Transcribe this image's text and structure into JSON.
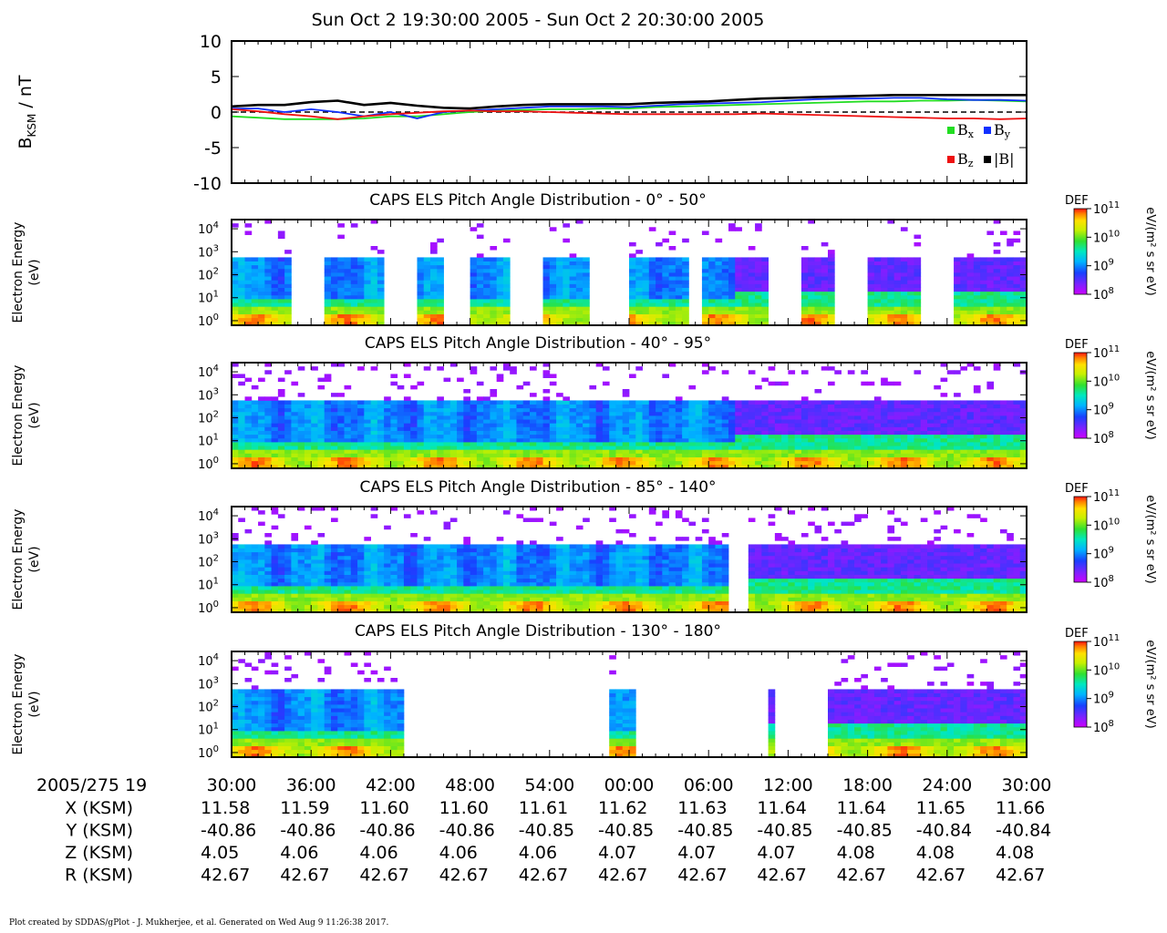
{
  "title": "Sun Oct 2 19:30:00 2005 - Sun Oct 2 20:30:00 2005",
  "footer": "Plot created by SDDAS/gPlot - J. Mukherjee, et al.  Generated on Wed Aug 9 11:26:38 2017.",
  "colors": {
    "bx": "#22dd22",
    "by": "#1030ff",
    "bz": "#ee1111",
    "bmag": "#000000"
  },
  "time_axis": {
    "label": "2005/275 19",
    "ticks": [
      "30:00",
      "36:00",
      "42:00",
      "48:00",
      "54:00",
      "00:00",
      "06:00",
      "12:00",
      "18:00",
      "24:00",
      "30:00"
    ]
  },
  "ephemeris": [
    {
      "label": "X (KSM)",
      "values": [
        "11.58",
        "11.59",
        "11.60",
        "11.60",
        "11.61",
        "11.62",
        "11.63",
        "11.64",
        "11.64",
        "11.65",
        "11.66"
      ]
    },
    {
      "label": "Y (KSM)",
      "values": [
        "-40.86",
        "-40.86",
        "-40.86",
        "-40.86",
        "-40.85",
        "-40.85",
        "-40.85",
        "-40.85",
        "-40.85",
        "-40.84",
        "-40.84"
      ]
    },
    {
      "label": "Z (KSM)",
      "values": [
        "4.05",
        "4.06",
        "4.06",
        "4.06",
        "4.06",
        "4.07",
        "4.07",
        "4.07",
        "4.08",
        "4.08",
        "4.08"
      ]
    },
    {
      "label": "R (KSM)",
      "values": [
        "42.67",
        "42.67",
        "42.67",
        "42.67",
        "42.67",
        "42.67",
        "42.67",
        "42.67",
        "42.67",
        "42.67",
        "42.67"
      ]
    }
  ],
  "chart_data": [
    {
      "type": "line",
      "ylabel": "B",
      "ylabel_sub": "KSM",
      "ylabel_unit": " / nT",
      "ylim": [
        -10,
        10
      ],
      "yticks": [
        "10",
        "5",
        "0",
        "-5",
        "-10"
      ],
      "x_minutes": [
        0,
        2,
        4,
        6,
        8,
        10,
        12,
        14,
        16,
        18,
        20,
        22,
        24,
        26,
        28,
        30,
        32,
        34,
        36,
        38,
        40,
        42,
        44,
        46,
        48,
        50,
        52,
        54,
        56,
        58,
        60
      ],
      "series": [
        {
          "name": "B",
          "sub": "x",
          "key": "bx",
          "values": [
            -0.6,
            -0.8,
            -1.0,
            -1.0,
            -1.0,
            -0.9,
            -0.6,
            -0.6,
            -0.3,
            0.0,
            0.2,
            0.3,
            0.4,
            0.4,
            0.5,
            0.5,
            0.7,
            0.8,
            0.9,
            1.0,
            1.1,
            1.2,
            1.3,
            1.4,
            1.5,
            1.5,
            1.6,
            1.6,
            1.7,
            1.6,
            1.5
          ]
        },
        {
          "name": "B",
          "sub": "y",
          "key": "by",
          "values": [
            0.5,
            0.5,
            0.0,
            0.4,
            0.0,
            -0.6,
            0.0,
            -0.9,
            0.0,
            0.2,
            0.4,
            0.6,
            0.8,
            0.8,
            0.8,
            0.7,
            0.9,
            1.1,
            1.2,
            1.3,
            1.4,
            1.6,
            1.8,
            1.9,
            1.9,
            2.0,
            2.0,
            1.8,
            1.7,
            1.7,
            1.6
          ]
        },
        {
          "name": "B",
          "sub": "z",
          "key": "bz",
          "values": [
            0.4,
            0.1,
            -0.3,
            -0.6,
            -1.0,
            -0.6,
            -0.3,
            -0.1,
            0.1,
            0.2,
            0.1,
            0.1,
            0.0,
            -0.1,
            -0.2,
            -0.3,
            -0.3,
            -0.3,
            -0.3,
            -0.3,
            -0.2,
            -0.3,
            -0.4,
            -0.5,
            -0.6,
            -0.7,
            -0.8,
            -0.9,
            -0.9,
            -1.0,
            -0.9
          ]
        },
        {
          "name": "|B|",
          "sub": "",
          "key": "bmag",
          "values": [
            0.8,
            1.0,
            1.0,
            1.4,
            1.6,
            1.0,
            1.3,
            0.9,
            0.6,
            0.5,
            0.8,
            1.0,
            1.1,
            1.1,
            1.1,
            1.1,
            1.3,
            1.4,
            1.5,
            1.7,
            1.9,
            2.0,
            2.1,
            2.2,
            2.3,
            2.4,
            2.4,
            2.4,
            2.4,
            2.4,
            2.4
          ]
        }
      ]
    },
    {
      "type": "heatmap",
      "title": "CAPS ELS Pitch Angle Distribution - 0° - 50°",
      "ylabel": "Electron Energy",
      "yunit": "(eV)",
      "ylim_log10": [
        -0.2,
        4.4
      ],
      "ytick_exponents": [
        "0",
        "1",
        "2",
        "3",
        "4"
      ],
      "coverage_minutes": [
        [
          0,
          4.6
        ],
        [
          7.0,
          11.5
        ],
        [
          14.0,
          15.8
        ],
        [
          18.0,
          21.0
        ],
        [
          23.5,
          27.0
        ],
        [
          30.0,
          34.5
        ],
        [
          35.5,
          40.5
        ],
        [
          43.0,
          45.5
        ],
        [
          48.0,
          52.0
        ],
        [
          54.5,
          60.0
        ]
      ]
    },
    {
      "type": "heatmap",
      "title": "CAPS ELS Pitch Angle Distribution - 40° - 95°",
      "ylabel": "Electron Energy",
      "yunit": "(eV)",
      "ylim_log10": [
        -0.2,
        4.4
      ],
      "ytick_exponents": [
        "0",
        "1",
        "2",
        "3",
        "4"
      ],
      "coverage_minutes": [
        [
          0,
          60
        ]
      ]
    },
    {
      "type": "heatmap",
      "title": "CAPS ELS Pitch Angle Distribution - 85° - 140°",
      "ylabel": "Electron Energy",
      "yunit": "(eV)",
      "ylim_log10": [
        -0.2,
        4.4
      ],
      "ytick_exponents": [
        "0",
        "1",
        "2",
        "3",
        "4"
      ],
      "coverage_minutes": [
        [
          0,
          37.5
        ],
        [
          38.8,
          60
        ]
      ]
    },
    {
      "type": "heatmap",
      "title": "CAPS ELS Pitch Angle Distribution - 130° - 180°",
      "ylabel": "Electron Energy",
      "yunit": "(eV)",
      "ylim_log10": [
        -0.2,
        4.4
      ],
      "ytick_exponents": [
        "0",
        "1",
        "2",
        "3",
        "4"
      ],
      "coverage_minutes": [
        [
          0,
          12.9
        ],
        [
          17.8,
          18.0
        ],
        [
          28.7,
          30.4
        ],
        [
          40.5,
          41.2
        ],
        [
          45.0,
          60
        ]
      ]
    }
  ],
  "colorbar": {
    "label": "DEF",
    "unit": "eV/(m² s sr eV)",
    "ticks": [
      "8",
      "9",
      "10",
      "11"
    ]
  }
}
